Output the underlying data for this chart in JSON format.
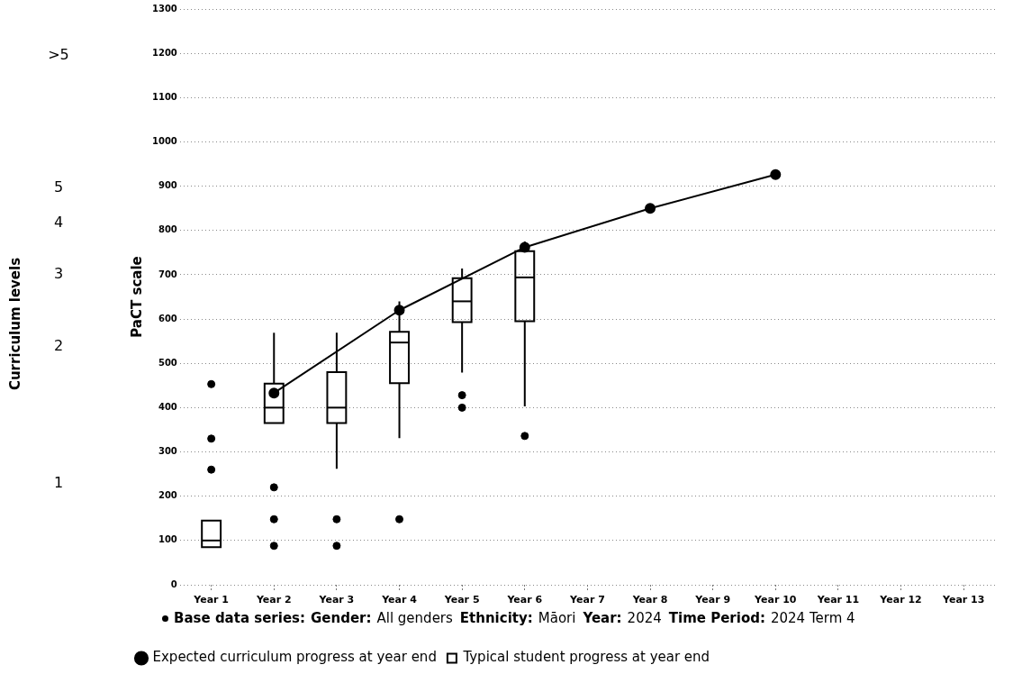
{
  "chart_data": {
    "type": "box",
    "ylabel": "PaCT scale",
    "categories": [
      "Year 1",
      "Year 2",
      "Year 3",
      "Year 4",
      "Year 5",
      "Year 6",
      "Year 7",
      "Year 8",
      "Year 9",
      "Year 10",
      "Year 11",
      "Year 12",
      "Year 13"
    ],
    "series": [
      {
        "name": "Typical student progress at year end",
        "type": "box",
        "color": "#000000",
        "boxes": [
          {
            "low": 85,
            "q1": 85,
            "median": 100,
            "q3": 145,
            "high": 145,
            "outliers": [
              453,
              330,
              260
            ]
          },
          {
            "low": 365,
            "q1": 365,
            "median": 400,
            "q3": 454,
            "high": 569,
            "outliers": [
              220,
              148,
              88
            ]
          },
          {
            "low": 262,
            "q1": 365,
            "median": 400,
            "q3": 480,
            "high": 569,
            "outliers": [
              148,
              88
            ]
          },
          {
            "low": 331,
            "q1": 455,
            "median": 547,
            "q3": 571,
            "high": 640,
            "outliers": [
              148
            ]
          },
          {
            "low": 479,
            "q1": 593,
            "median": 640,
            "q3": 692,
            "high": 714,
            "outliers": [
              428,
              400
            ]
          },
          {
            "low": 403,
            "q1": 595,
            "median": 694,
            "q3": 753,
            "high": 775,
            "outliers": [
              336
            ]
          },
          null,
          null,
          null,
          null,
          null,
          null,
          null
        ]
      },
      {
        "name": "Expected curriculum progress at year end",
        "type": "line",
        "color": "#000000",
        "marker": "circle",
        "values": [
          null,
          433,
          null,
          620,
          null,
          762,
          null,
          850,
          null,
          926,
          null,
          null,
          null
        ]
      }
    ],
    "ylim": [
      0,
      1300
    ],
    "yticks": [
      0,
      100,
      200,
      300,
      400,
      500,
      600,
      700,
      800,
      900,
      1000,
      1100,
      1200,
      1300
    ],
    "grid": "y",
    "legend": "bottom",
    "annotations": [
      "Base data series:",
      "Gender:",
      "All genders",
      "Ethnicity:",
      "Māori",
      "Year:",
      "2024",
      "Time Period:",
      "2024 Term 4",
      ">5",
      "5",
      "4",
      "3",
      "2",
      "1",
      "Curriculum levels"
    ]
  }
}
